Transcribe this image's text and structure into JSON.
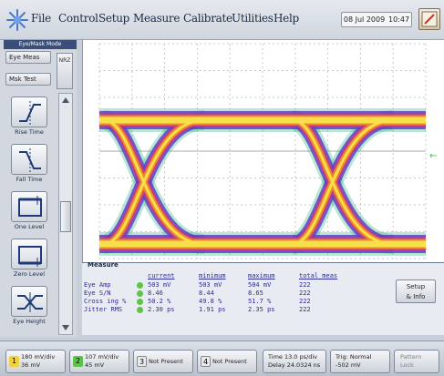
{
  "menubar": {
    "items": [
      "File",
      "Control",
      "Setup",
      "Measure",
      "Calibrate",
      "Utilities",
      "Help"
    ],
    "date": "08 Jul 2009",
    "time": "10:47"
  },
  "left_panel": {
    "caption": "Eye/Mask Mode",
    "mode_button": "Eye Meas",
    "mask_button": "Msk Test",
    "pattern_label": "NRZ",
    "tools": [
      "Rise Time",
      "Fall Time",
      "One Level",
      "Zero Level",
      "Eye Height"
    ]
  },
  "measure": {
    "tab_label": "Measure",
    "headers": [
      "current",
      "minimum",
      "maximum",
      "total meas"
    ],
    "rows": [
      {
        "name": "Eye Amp",
        "current": "503 mV",
        "minimum": "503 mV",
        "maximum": "504 mV",
        "total": "222"
      },
      {
        "name": "Eye S/N",
        "current": "8.46",
        "minimum": "8.44",
        "maximum": "8.65",
        "total": "222"
      },
      {
        "name": "Cross ing %",
        "current": "50.2 %",
        "minimum": "49.8 %",
        "maximum": "51.7 %",
        "total": "222"
      },
      {
        "name": "Jitter RMS",
        "current": "2.30 ps",
        "minimum": "1.91 ps",
        "maximum": "2.35 ps",
        "total": "222"
      }
    ],
    "setup_button": [
      "Setup",
      "& Info"
    ]
  },
  "bottom": {
    "channels": [
      {
        "num": "1",
        "line1": "180 mV/div",
        "line2": "36 mV",
        "color": "#f2d23a"
      },
      {
        "num": "2",
        "line1": "107 mV/div",
        "line2": "45 mV",
        "color": "#5fc24a"
      },
      {
        "num": "3",
        "line1": "Not Present",
        "line2": "",
        "color": "#e9ebef"
      },
      {
        "num": "4",
        "line1": "Not Present",
        "line2": "",
        "color": "#e9ebef"
      }
    ],
    "time": [
      "Time 13.0 ps/div",
      "Delay 24.0324 ns"
    ],
    "trigger": [
      "Trig: Normal",
      "-502 mV"
    ],
    "pattern": [
      "Pattern",
      "Lock"
    ]
  },
  "colors": {
    "accent": "#3a4e7a",
    "eye_core": "#f7e04a",
    "eye_mid": "#f08a2a",
    "eye_outer": "#c43a8a",
    "eye_edge": "#5a3fc8",
    "eye_halo": "#38b88a"
  }
}
